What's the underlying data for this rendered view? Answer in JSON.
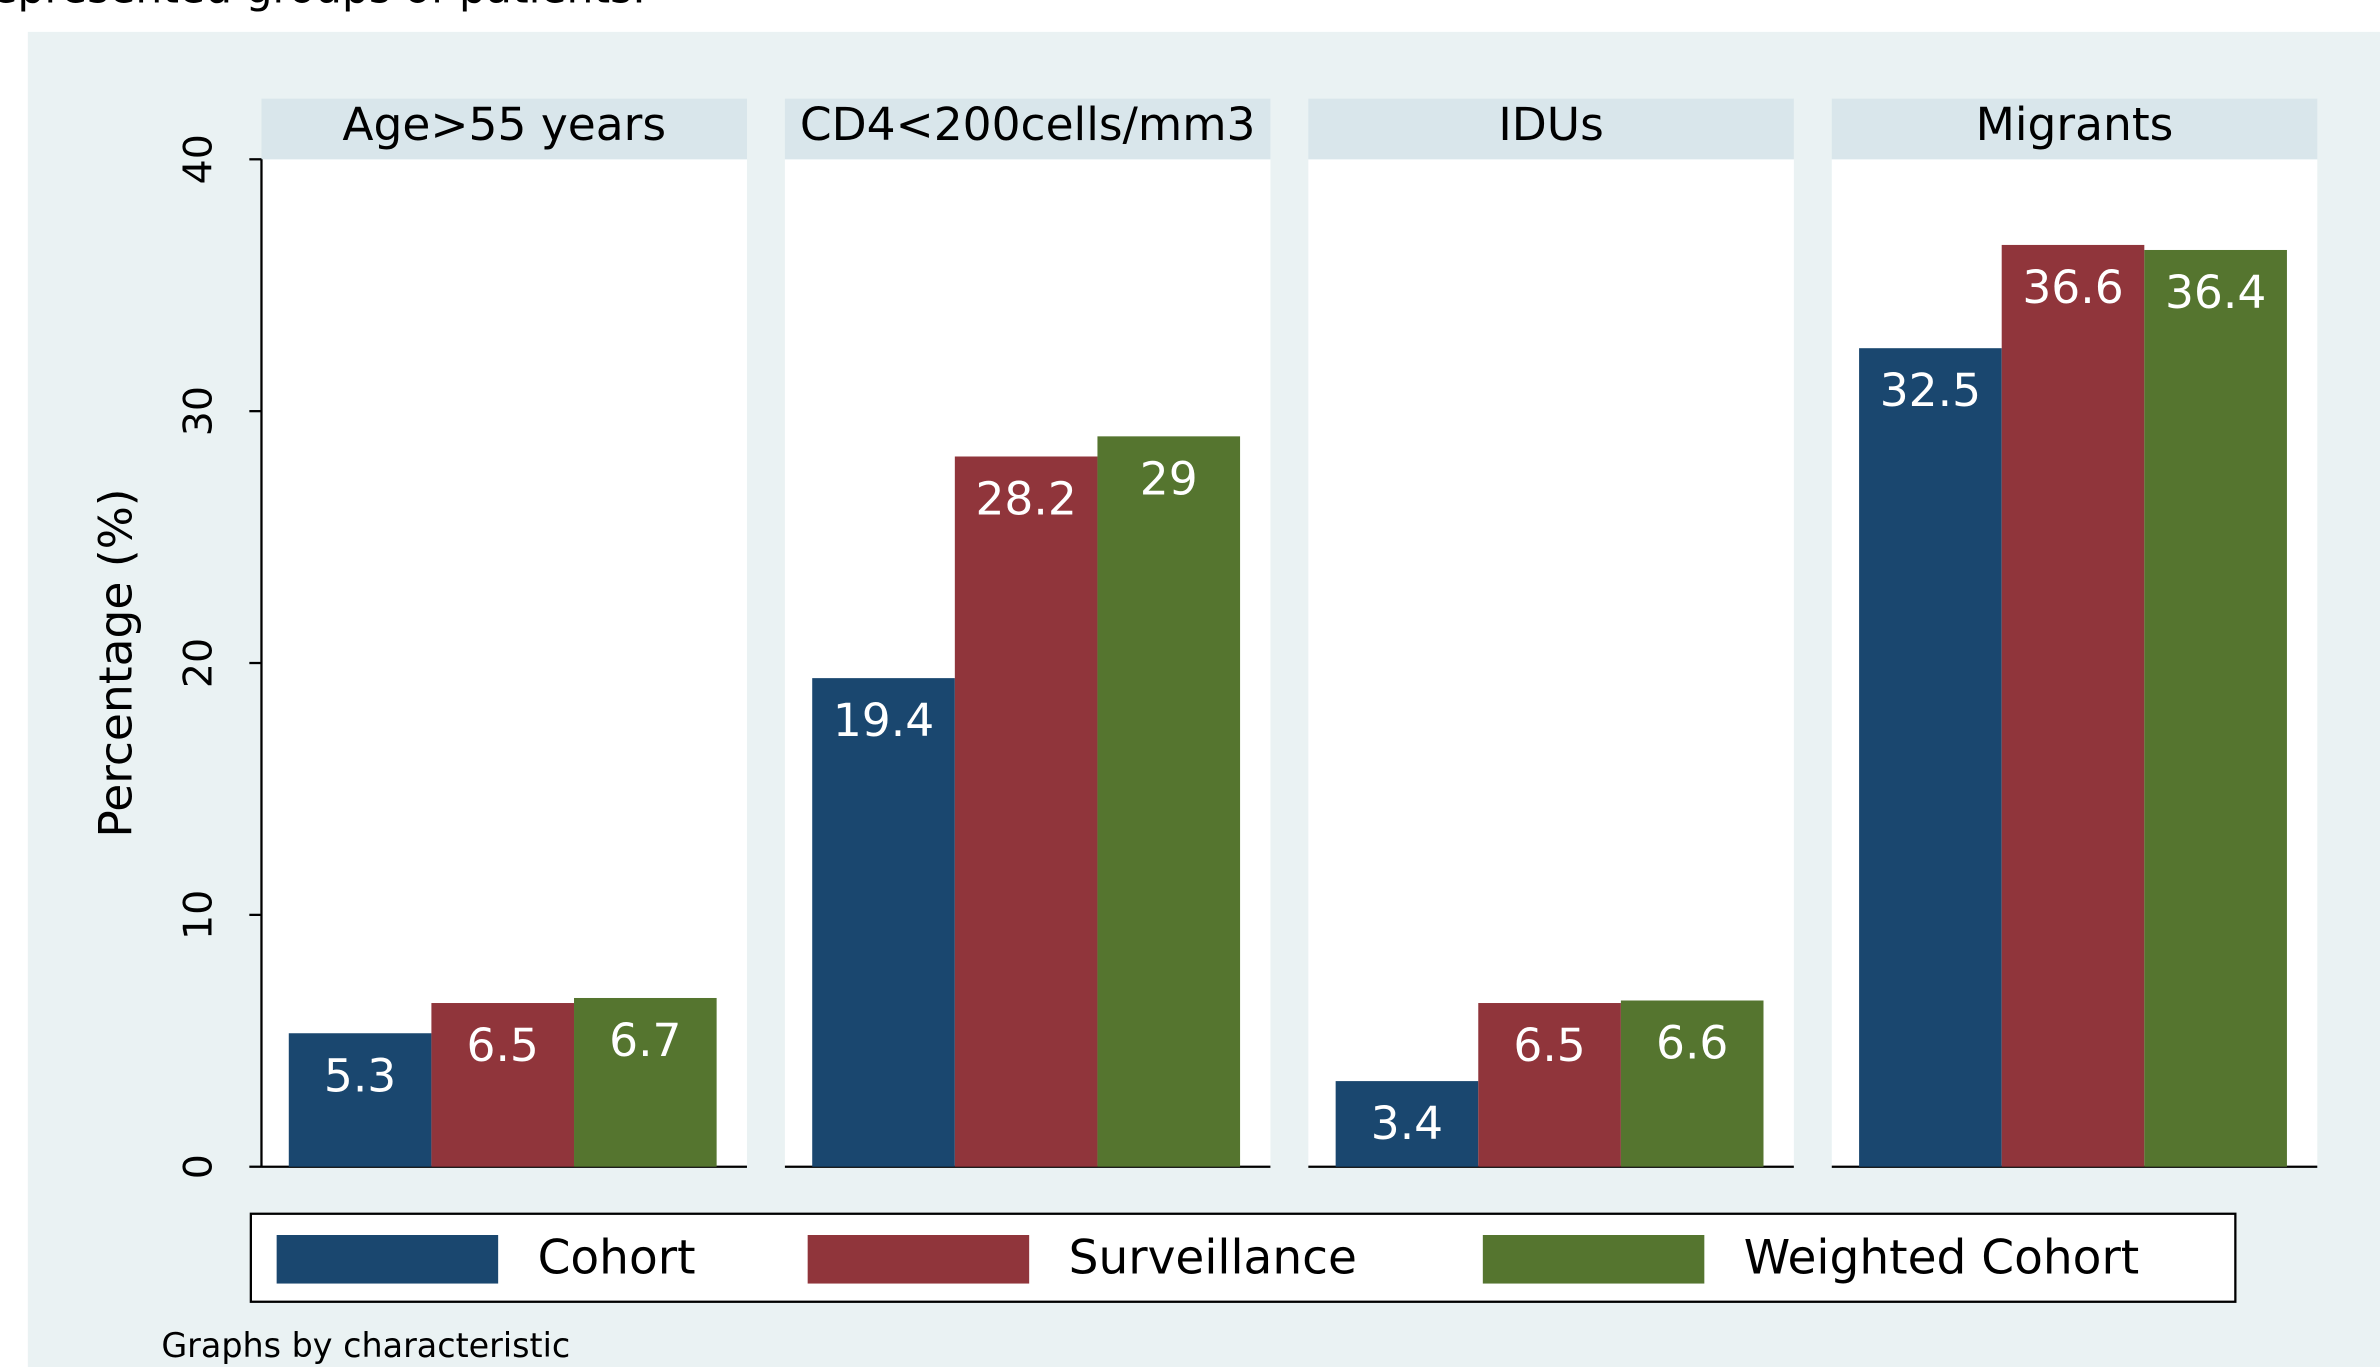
{
  "caption_fragment": "epresented groups of patients.",
  "chart_data": {
    "type": "bar",
    "ylabel": "Percentage (%)",
    "categories": [
      "Age>55 years",
      "CD4<200cells/mm3",
      "IDUs",
      "Migrants"
    ],
    "series": [
      {
        "name": "Cohort",
        "color": "#1a476f",
        "values": [
          5.3,
          19.4,
          3.4,
          32.5
        ]
      },
      {
        "name": "Surveillance",
        "color": "#90353b",
        "values": [
          6.5,
          28.2,
          6.5,
          36.6
        ]
      },
      {
        "name": "Weighted Cohort",
        "color": "#55752f",
        "values": [
          6.7,
          29,
          6.6,
          36.4
        ]
      }
    ],
    "ylim": [
      0,
      40
    ],
    "yticks": [
      0,
      10,
      20,
      30,
      40
    ],
    "grid": false,
    "legend": "bottom",
    "note": "Graphs by characteristic"
  }
}
